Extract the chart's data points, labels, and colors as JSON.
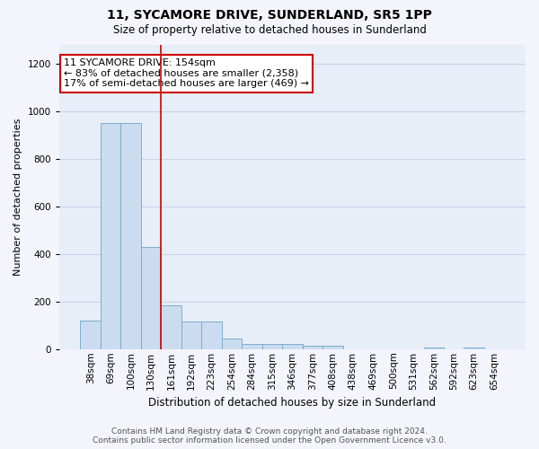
{
  "title": "11, SYCAMORE DRIVE, SUNDERLAND, SR5 1PP",
  "subtitle": "Size of property relative to detached houses in Sunderland",
  "xlabel": "Distribution of detached houses by size in Sunderland",
  "ylabel": "Number of detached properties",
  "categories": [
    "38sqm",
    "69sqm",
    "100sqm",
    "130sqm",
    "161sqm",
    "192sqm",
    "223sqm",
    "254sqm",
    "284sqm",
    "315sqm",
    "346sqm",
    "377sqm",
    "408sqm",
    "438sqm",
    "469sqm",
    "500sqm",
    "531sqm",
    "562sqm",
    "592sqm",
    "623sqm",
    "654sqm"
  ],
  "values": [
    120,
    950,
    950,
    430,
    185,
    115,
    115,
    45,
    20,
    20,
    20,
    15,
    15,
    0,
    0,
    0,
    0,
    8,
    0,
    8,
    0
  ],
  "bar_color": "#ccdcf0",
  "bar_edge_color": "#7aaecc",
  "bar_linewidth": 0.7,
  "red_line_index": 4,
  "red_line_color": "#cc0000",
  "red_line_linewidth": 1.2,
  "annotation_title": "11 SYCAMORE DRIVE: 154sqm",
  "annotation_line1": "← 83% of detached houses are smaller (2,358)",
  "annotation_line2": "17% of semi-detached houses are larger (469) →",
  "annotation_box_facecolor": "#ffffff",
  "annotation_box_edgecolor": "#cc0000",
  "ylim": [
    0,
    1280
  ],
  "yticks": [
    0,
    200,
    400,
    600,
    800,
    1000,
    1200
  ],
  "grid_color": "#c8d4e8",
  "plot_bg_color": "#e8eef8",
  "fig_bg_color": "#f4f4fc",
  "footer_line1": "Contains HM Land Registry data © Crown copyright and database right 2024.",
  "footer_line2": "Contains public sector information licensed under the Open Government Licence v3.0.",
  "title_fontsize": 10,
  "subtitle_fontsize": 8.5,
  "ylabel_fontsize": 8,
  "xlabel_fontsize": 8.5,
  "tick_fontsize": 7.5,
  "footer_fontsize": 6.5,
  "ann_fontsize": 8
}
